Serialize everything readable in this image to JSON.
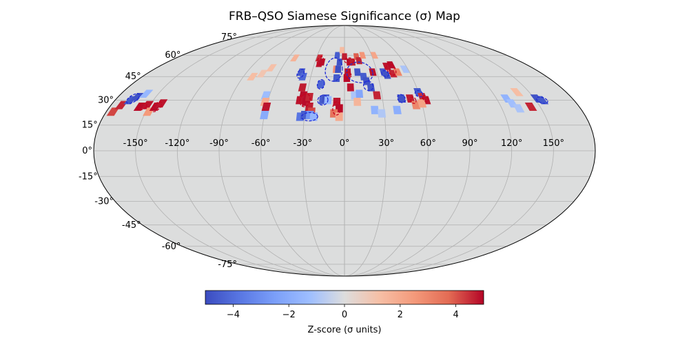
{
  "chart_data": {
    "type": "heatmap",
    "projection": "mollweide",
    "title": "FRB–QSO Siamese Significance (σ) Map",
    "colormap": "coolwarm",
    "clim": [
      -5,
      5
    ],
    "grid": true,
    "background_color": "#dcdddd",
    "lon_ticks": [
      {
        "value": -150,
        "label": "-150°"
      },
      {
        "value": -120,
        "label": "-120°"
      },
      {
        "value": -90,
        "label": "-90°"
      },
      {
        "value": -60,
        "label": "-60°"
      },
      {
        "value": -30,
        "label": "-30°"
      },
      {
        "value": 0,
        "label": "0°"
      },
      {
        "value": 30,
        "label": "30°"
      },
      {
        "value": 60,
        "label": "60°"
      },
      {
        "value": 90,
        "label": "90°"
      },
      {
        "value": 120,
        "label": "120°"
      },
      {
        "value": 150,
        "label": "150°"
      }
    ],
    "lat_ticks": [
      {
        "value": 75,
        "label": "75°"
      },
      {
        "value": 60,
        "label": "60°"
      },
      {
        "value": 45,
        "label": "45°"
      },
      {
        "value": 30,
        "label": "30°"
      },
      {
        "value": 15,
        "label": "15°"
      },
      {
        "value": 0,
        "label": "0°"
      },
      {
        "value": -15,
        "label": "-15°"
      },
      {
        "value": -30,
        "label": "-30°"
      },
      {
        "value": -45,
        "label": "-45°"
      },
      {
        "value": -60,
        "label": "-60°"
      },
      {
        "value": -75,
        "label": "-75°"
      }
    ],
    "colorbar": {
      "label": "Z-score (σ units)",
      "ticks": [
        {
          "value": -4,
          "label": "−4"
        },
        {
          "value": -2,
          "label": "−2"
        },
        {
          "value": 0,
          "label": "0"
        },
        {
          "value": 2,
          "label": "2"
        },
        {
          "value": 4,
          "label": "4"
        }
      ]
    },
    "cells": [
      {
        "lon": -175,
        "lat": 23,
        "z": 4.2
      },
      {
        "lon": -172,
        "lat": 27,
        "z": 4.6
      },
      {
        "lon": -168,
        "lat": 30,
        "z": -4.6
      },
      {
        "lon": -165,
        "lat": 32,
        "z": -4.8
      },
      {
        "lon": -160,
        "lat": 34,
        "z": -1.5
      },
      {
        "lon": -157,
        "lat": 26,
        "z": 4.9
      },
      {
        "lon": -152,
        "lat": 27,
        "z": 4.8
      },
      {
        "lon": -148,
        "lat": 23,
        "z": 2.5
      },
      {
        "lon": -145,
        "lat": 26,
        "z": 4.9
      },
      {
        "lon": -142,
        "lat": 28,
        "z": 4.8
      },
      {
        "lon": -82,
        "lat": 45,
        "z": 1.3
      },
      {
        "lon": -75,
        "lat": 47,
        "z": 1.0
      },
      {
        "lon": -70,
        "lat": 51,
        "z": 1.2
      },
      {
        "lon": -63,
        "lat": 33,
        "z": -1.3
      },
      {
        "lon": -62,
        "lat": 29,
        "z": 1.9
      },
      {
        "lon": -60,
        "lat": 26,
        "z": 4.8
      },
      {
        "lon": -60,
        "lat": 21,
        "z": -2.0
      },
      {
        "lon": -53,
        "lat": 58,
        "z": 1.7
      },
      {
        "lon": -40,
        "lat": 48,
        "z": -4.6
      },
      {
        "lon": -37,
        "lat": 45,
        "z": -4.2
      },
      {
        "lon": -35,
        "lat": 38,
        "z": 4.7
      },
      {
        "lon": -33,
        "lat": 33,
        "z": 4.9
      },
      {
        "lon": -35,
        "lat": 30,
        "z": 4.8
      },
      {
        "lon": -30,
        "lat": 29,
        "z": 4.9
      },
      {
        "lon": -28,
        "lat": 32,
        "z": 4.6
      },
      {
        "lon": -27,
        "lat": 26,
        "z": 4.7
      },
      {
        "lon": -25,
        "lat": 23,
        "z": 4.2
      },
      {
        "lon": -33,
        "lat": 20,
        "z": -3.8
      },
      {
        "lon": -30,
        "lat": 21,
        "z": -4.5
      },
      {
        "lon": -26,
        "lat": 21,
        "z": -2.8
      },
      {
        "lon": -23,
        "lat": 20,
        "z": -1.6
      },
      {
        "lon": -27,
        "lat": 58,
        "z": 4.5
      },
      {
        "lon": -25,
        "lat": 54,
        "z": 4.8
      },
      {
        "lon": -23,
        "lat": 55,
        "z": 4.9
      },
      {
        "lon": -20,
        "lat": 40,
        "z": -4.3
      },
      {
        "lon": -17,
        "lat": 30,
        "z": -4.5
      },
      {
        "lon": -15,
        "lat": 31,
        "z": -4.8
      },
      {
        "lon": -13,
        "lat": 30,
        "z": -1.4
      },
      {
        "lon": -8,
        "lat": 50,
        "z": 2.8
      },
      {
        "lon": -8,
        "lat": 60,
        "z": -4.5
      },
      {
        "lon": -5,
        "lat": 55,
        "z": -4.8
      },
      {
        "lon": -6,
        "lat": 50,
        "z": -4.9
      },
      {
        "lon": -7,
        "lat": 44,
        "z": -4.6
      },
      {
        "lon": -3,
        "lat": 64,
        "z": 1.4
      },
      {
        "lon": -6,
        "lat": 29,
        "z": 4.8
      },
      {
        "lon": -4,
        "lat": 25,
        "z": 4.9
      },
      {
        "lon": -8,
        "lat": 22,
        "z": 3.5
      },
      {
        "lon": -4,
        "lat": 20,
        "z": 2.0
      },
      {
        "lon": 0,
        "lat": 59,
        "z": 4.7
      },
      {
        "lon": 2,
        "lat": 44,
        "z": 4.9
      },
      {
        "lon": 3,
        "lat": 48,
        "z": 4.8
      },
      {
        "lon": 5,
        "lat": 55,
        "z": 4.9
      },
      {
        "lon": 8,
        "lat": 55,
        "z": 4.7
      },
      {
        "lon": 5,
        "lat": 38,
        "z": 4.8
      },
      {
        "lon": 8,
        "lat": 33,
        "z": -1.0
      },
      {
        "lon": 10,
        "lat": 29,
        "z": 1.6
      },
      {
        "lon": 12,
        "lat": 48,
        "z": -4.7
      },
      {
        "lon": 13,
        "lat": 59,
        "z": 3.9
      },
      {
        "lon": 15,
        "lat": 56,
        "z": 4.6
      },
      {
        "lon": 12,
        "lat": 34,
        "z": -2.2
      },
      {
        "lon": 17,
        "lat": 45,
        "z": -4.5
      },
      {
        "lon": 19,
        "lat": 42,
        "z": -4.8
      },
      {
        "lon": 22,
        "lat": 38,
        "z": -4.7
      },
      {
        "lon": 20,
        "lat": 60,
        "z": 2.6
      },
      {
        "lon": 26,
        "lat": 48,
        "z": 4.8
      },
      {
        "lon": 26,
        "lat": 33,
        "z": 4.6
      },
      {
        "lon": 23,
        "lat": 24,
        "z": -1.7
      },
      {
        "lon": 28,
        "lat": 22,
        "z": -0.9
      },
      {
        "lon": 33,
        "lat": 60,
        "z": 2.1
      },
      {
        "lon": 36,
        "lat": 48,
        "z": -4.6
      },
      {
        "lon": 38,
        "lat": 46,
        "z": -4.8
      },
      {
        "lon": 41,
        "lat": 52,
        "z": 4.8
      },
      {
        "lon": 44,
        "lat": 47,
        "z": 4.6
      },
      {
        "lon": 46,
        "lat": 53,
        "z": 4.9
      },
      {
        "lon": 49,
        "lat": 48,
        "z": 3.0
      },
      {
        "lon": 45,
        "lat": 31,
        "z": -4.8
      },
      {
        "lon": 52,
        "lat": 31,
        "z": 4.7
      },
      {
        "lon": 55,
        "lat": 27,
        "z": 3.0
      },
      {
        "lon": 40,
        "lat": 24,
        "z": -1.9
      },
      {
        "lon": 57,
        "lat": 50,
        "z": -1.0
      },
      {
        "lon": 60,
        "lat": 35,
        "z": -4.6
      },
      {
        "lon": 62,
        "lat": 32,
        "z": 4.5
      },
      {
        "lon": 64,
        "lat": 30,
        "z": 4.8
      },
      {
        "lon": 60,
        "lat": 28,
        "z": 2.2
      },
      {
        "lon": 128,
        "lat": 31,
        "z": -1.7
      },
      {
        "lon": 130,
        "lat": 28,
        "z": -1.2
      },
      {
        "lon": 133,
        "lat": 25,
        "z": -1.0
      },
      {
        "lon": 140,
        "lat": 35,
        "z": 1.3
      },
      {
        "lon": 143,
        "lat": 26,
        "z": 4.6
      },
      {
        "lon": 152,
        "lat": 31,
        "z": -4.8
      },
      {
        "lon": 155,
        "lat": 30,
        "z": -4.6
      }
    ],
    "contours": [
      {
        "lon": -10,
        "lat": 50,
        "dlon": 8,
        "dlat": 8,
        "sign": "negative"
      },
      {
        "lon": -26,
        "lat": 20,
        "dlon": 6,
        "dlat": 2.5,
        "sign": "negative"
      },
      {
        "lon": -40,
        "lat": 47,
        "dlon": 3,
        "dlat": 3,
        "sign": "negative"
      },
      {
        "lon": -20,
        "lat": 40,
        "dlon": 3,
        "dlat": 3,
        "sign": "negative"
      },
      {
        "lon": -17,
        "lat": 30,
        "dlon": 4,
        "dlat": 3,
        "sign": "negative"
      },
      {
        "lon": 14,
        "lat": 48,
        "dlon": 12,
        "dlat": 7,
        "sign": "negative"
      },
      {
        "lon": 20,
        "lat": 39,
        "dlon": 4,
        "dlat": 3,
        "sign": "negative"
      },
      {
        "lon": 37,
        "lat": 47,
        "dlon": 3,
        "dlat": 2,
        "sign": "negative"
      },
      {
        "lon": 45,
        "lat": 31,
        "dlon": 3,
        "dlat": 2.5,
        "sign": "negative"
      },
      {
        "lon": 60,
        "lat": 34,
        "dlon": 3,
        "dlat": 2,
        "sign": "negative"
      },
      {
        "lon": 155,
        "lat": 30,
        "dlon": 4,
        "dlat": 2,
        "sign": "negative"
      },
      {
        "lon": -167,
        "lat": 31,
        "dlon": 4,
        "dlat": 3,
        "sign": "negative"
      },
      {
        "lon": -6,
        "lat": 25,
        "dlon": 3,
        "dlat": 4,
        "sign": "positive"
      },
      {
        "lon": -31,
        "lat": 30,
        "dlon": 4,
        "dlat": 4,
        "sign": "positive"
      },
      {
        "lon": -25,
        "lat": 56,
        "dlon": 3,
        "dlat": 3,
        "sign": "positive"
      },
      {
        "lon": 5,
        "lat": 56,
        "dlon": 5,
        "dlat": 2,
        "sign": "positive"
      },
      {
        "lon": 3,
        "lat": 46,
        "dlon": 3,
        "dlat": 2,
        "sign": "positive"
      },
      {
        "lon": 44,
        "lat": 50,
        "dlon": 4,
        "dlat": 4,
        "sign": "positive"
      },
      {
        "lon": 64,
        "lat": 31,
        "dlon": 2,
        "dlat": 2,
        "sign": "positive"
      },
      {
        "lon": 54,
        "lat": 30,
        "dlon": 2,
        "dlat": 2,
        "sign": "positive"
      },
      {
        "lon": -144,
        "lat": 26,
        "dlon": 3,
        "dlat": 3,
        "sign": "positive"
      },
      {
        "lon": -155,
        "lat": 26,
        "dlon": 3,
        "dlat": 2,
        "sign": "positive"
      }
    ]
  }
}
